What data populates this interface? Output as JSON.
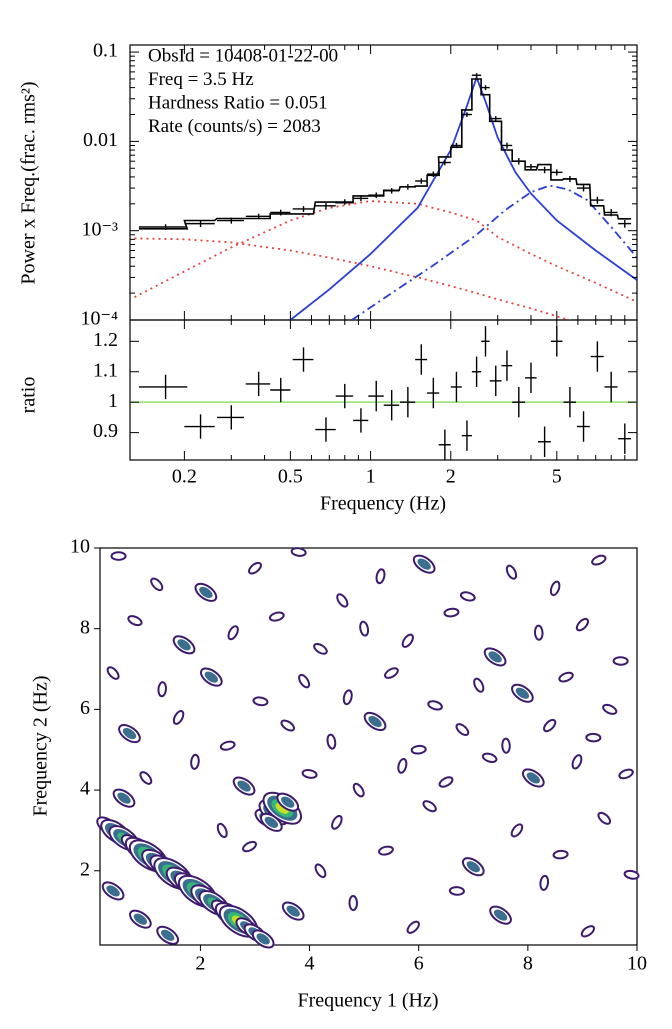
{
  "chart_data": [
    {
      "type": "errorbar",
      "xscale": "log",
      "yscale": "log",
      "ylabel": "Power x Freq.(frac. rms²)",
      "annotations": [
        "ObsId = 10408-01-22-00",
        "Freq = 3.5 Hz",
        "Hardness Ratio = 0.051",
        "Rate (counts/s) = 2083"
      ],
      "xlim": [
        0.125,
        10
      ],
      "ylim": [
        0.0001,
        0.12
      ],
      "yticks": [
        0.1,
        0.01,
        {
          "value": 0.001,
          "label": "10⁻³"
        },
        {
          "value": 0.0001,
          "label": "10⁻⁴"
        }
      ],
      "yminorticks": [
        0.0002,
        0.0003,
        0.0004,
        0.0005,
        0.0006,
        0.0007,
        0.0008,
        0.0009,
        0.002,
        0.003,
        0.004,
        0.005,
        0.006,
        0.007,
        0.008,
        0.009,
        0.02,
        0.03,
        0.04,
        0.05,
        0.06,
        0.07,
        0.08,
        0.09
      ],
      "x": [
        0.17,
        0.23,
        0.3,
        0.38,
        0.46,
        0.56,
        0.68,
        0.8,
        0.92,
        1.05,
        1.2,
        1.38,
        1.55,
        1.72,
        1.9,
        2.1,
        2.3,
        2.5,
        2.7,
        2.95,
        3.25,
        3.6,
        4.0,
        4.5,
        5.0,
        5.6,
        6.3,
        7.1,
        8.0,
        9.0
      ],
      "xerr": [
        0.035,
        0.03,
        0.035,
        0.04,
        0.04,
        0.05,
        0.06,
        0.06,
        0.06,
        0.07,
        0.08,
        0.09,
        0.08,
        0.09,
        0.1,
        0.1,
        0.1,
        0.1,
        0.1,
        0.15,
        0.15,
        0.2,
        0.2,
        0.25,
        0.25,
        0.3,
        0.35,
        0.4,
        0.45,
        0.5
      ],
      "values": [
        0.0011,
        0.0012,
        0.0013,
        0.00145,
        0.0016,
        0.00175,
        0.0019,
        0.0021,
        0.0023,
        0.0025,
        0.0028,
        0.0031,
        0.0036,
        0.0043,
        0.0058,
        0.009,
        0.02,
        0.055,
        0.04,
        0.018,
        0.009,
        0.006,
        0.0052,
        0.0048,
        0.0045,
        0.0038,
        0.003,
        0.0022,
        0.0016,
        0.0012
      ],
      "errors": [
        8e-05,
        0.0001,
        0.0001,
        0.0001,
        0.00012,
        0.00013,
        0.00014,
        0.00015,
        0.00016,
        0.00018,
        0.0002,
        0.00022,
        0.00025,
        0.0003,
        0.0004,
        0.0006,
        0.0012,
        0.003,
        0.0025,
        0.0012,
        0.0007,
        0.0005,
        0.0004,
        0.0004,
        0.00035,
        0.0003,
        0.00025,
        0.0002,
        0.00015,
        0.00012
      ],
      "model": [
        0.00105,
        0.0013,
        0.00137,
        0.00137,
        0.00154,
        0.00154,
        0.00209,
        0.00206,
        0.00245,
        0.00245,
        0.00283,
        0.0031,
        0.00316,
        0.00417,
        0.0067,
        0.0086,
        0.0225,
        0.05,
        0.0333,
        0.0168,
        0.008,
        0.006,
        0.0048,
        0.0055,
        0.0037,
        0.0038,
        0.0033,
        0.0019,
        0.0015,
        0.00136
      ],
      "color": "#000000",
      "components": [
        {
          "color": "#e8423a",
          "style": "dotted",
          "x": [
            0.13,
            0.2,
            0.3,
            0.5,
            0.7,
            1,
            1.5,
            2,
            2.5,
            3,
            4,
            5,
            7,
            10
          ],
          "values": [
            0.00082,
            0.0008,
            0.00074,
            0.0006,
            0.0005,
            0.0004,
            0.0003,
            0.00024,
            0.0002,
            0.00017,
            0.000135,
            0.00011,
            8e-05,
            6e-05
          ]
        },
        {
          "color": "#e8423a",
          "style": "dotted",
          "x": [
            0.13,
            0.2,
            0.3,
            0.5,
            0.7,
            1,
            1.5,
            2,
            2.5,
            3,
            4,
            5,
            7,
            10
          ],
          "values": [
            0.00018,
            0.00035,
            0.00065,
            0.0013,
            0.0018,
            0.00215,
            0.002,
            0.0016,
            0.0013,
            0.00085,
            0.00055,
            0.0004,
            0.00026,
            0.00016
          ]
        },
        {
          "color": "#2a3fd6",
          "style": "solid",
          "x": [
            0.5,
            0.7,
            1,
            1.5,
            2,
            2.3,
            2.5,
            2.7,
            3,
            3.5,
            4,
            5,
            7,
            10
          ],
          "values": [
            0.0001,
            0.00022,
            0.00055,
            0.0018,
            0.008,
            0.025,
            0.052,
            0.028,
            0.011,
            0.0045,
            0.0026,
            0.0013,
            0.0006,
            0.00028
          ]
        },
        {
          "color": "#2a3fd6",
          "style": "dashdot",
          "x": [
            0.85,
            1.2,
            1.7,
            2.5,
            3.2,
            4,
            4.7,
            5.5,
            6.5,
            8,
            10
          ],
          "values": [
            0.0001,
            0.0002,
            0.0004,
            0.0009,
            0.0017,
            0.0027,
            0.0032,
            0.0029,
            0.0022,
            0.0011,
            0.0005
          ]
        }
      ]
    },
    {
      "type": "errorbar",
      "xscale": "log",
      "xlabel": "Frequency (Hz)",
      "ylabel": "ratio",
      "xlim": [
        0.125,
        10
      ],
      "ylim": [
        0.81,
        1.27
      ],
      "xticks": [
        0.2,
        0.5,
        1,
        2,
        5
      ],
      "xminorticks": [
        0.3,
        0.4,
        0.6,
        0.7,
        0.8,
        0.9,
        3,
        4,
        6,
        7,
        8,
        9
      ],
      "yticks": [
        0.9,
        1,
        1.1,
        1.2
      ],
      "reference_line": {
        "value": 1,
        "color": "#8fe06a"
      },
      "x": [
        0.17,
        0.23,
        0.3,
        0.38,
        0.46,
        0.56,
        0.68,
        0.8,
        0.92,
        1.05,
        1.2,
        1.38,
        1.55,
        1.72,
        1.9,
        2.1,
        2.3,
        2.5,
        2.7,
        2.95,
        3.25,
        3.6,
        4.0,
        4.5,
        5.0,
        5.6,
        6.3,
        7.1,
        8.0,
        9.0
      ],
      "xerr": [
        0.035,
        0.03,
        0.035,
        0.04,
        0.04,
        0.05,
        0.06,
        0.06,
        0.06,
        0.07,
        0.08,
        0.09,
        0.08,
        0.09,
        0.1,
        0.1,
        0.1,
        0.1,
        0.1,
        0.15,
        0.15,
        0.2,
        0.2,
        0.25,
        0.25,
        0.3,
        0.35,
        0.4,
        0.45,
        0.5
      ],
      "values": [
        1.05,
        0.92,
        0.95,
        1.06,
        1.04,
        1.14,
        0.91,
        1.02,
        0.94,
        1.02,
        0.99,
        1.0,
        1.14,
        1.03,
        0.86,
        1.05,
        0.89,
        1.1,
        1.2,
        1.07,
        1.12,
        1.0,
        1.08,
        0.87,
        1.2,
        1.0,
        0.92,
        1.15,
        1.05,
        0.88
      ],
      "errors": [
        0.04,
        0.04,
        0.04,
        0.04,
        0.04,
        0.04,
        0.04,
        0.04,
        0.04,
        0.05,
        0.05,
        0.05,
        0.05,
        0.05,
        0.05,
        0.05,
        0.05,
        0.05,
        0.05,
        0.05,
        0.05,
        0.05,
        0.05,
        0.05,
        0.05,
        0.05,
        0.05,
        0.05,
        0.05,
        0.05
      ],
      "color": "#000000"
    },
    {
      "type": "contour",
      "xlabel": "Frequency 1 (Hz)",
      "ylabel": "Frequency 2 (Hz)",
      "xlim": [
        0.16,
        10
      ],
      "ylim": [
        0.16,
        10
      ],
      "xticks": [
        2,
        4,
        6,
        8,
        10
      ],
      "yticks": [
        2,
        4,
        6,
        8,
        10
      ],
      "level_colors": [
        "#3e1a6e",
        "#3b6e8f",
        "#35b779",
        "#c8e020"
      ],
      "x": [
        0.5,
        1.2,
        2.1,
        3.0,
        3.8,
        4.6,
        5.3,
        6.1,
        6.9,
        7.7,
        8.5,
        9.3,
        0.8,
        1.7,
        2.6,
        3.4,
        4.2,
        5.0,
        5.8,
        6.6,
        7.4,
        8.2,
        9.0,
        9.7,
        0.4,
        1.3,
        2.2,
        3.1,
        3.9,
        4.7,
        5.5,
        6.3,
        7.1,
        7.9,
        8.7,
        9.5,
        0.7,
        1.6,
        2.5,
        3.6,
        4.4,
        5.2,
        6.0,
        6.8,
        7.6,
        8.4,
        9.2,
        1.0,
        1.9,
        2.8,
        4.0,
        4.9,
        5.7,
        6.5,
        7.3,
        8.1,
        8.9,
        9.8,
        0.9,
        0.4,
        4.5,
        5.4,
        6.2,
        7.0,
        7.8,
        8.6,
        9.4,
        4.8,
        5.9,
        6.7,
        7.5,
        8.3,
        9.1,
        9.9,
        4.2,
        3.7,
        2.9,
        1.4,
        2.4,
        0.6,
        0.3,
        0.45,
        0.6,
        0.75,
        0.9,
        1.05,
        1.2,
        1.35,
        1.5,
        1.65,
        1.8,
        1.95,
        2.1,
        2.25,
        2.4,
        2.55,
        2.7,
        2.85,
        3.0,
        3.15,
        3.2,
        3.35,
        3.5,
        3.6,
        3.3
      ],
      "y": [
        9.8,
        9.1,
        8.9,
        9.5,
        9.9,
        8.7,
        9.3,
        9.6,
        8.8,
        9.4,
        9.0,
        9.7,
        8.2,
        7.6,
        7.9,
        8.3,
        7.5,
        8.0,
        7.7,
        8.4,
        7.3,
        7.9,
        8.1,
        7.2,
        6.9,
        6.5,
        6.8,
        6.2,
        6.7,
        6.3,
        6.9,
        6.1,
        6.6,
        6.4,
        6.8,
        6.0,
        5.4,
        5.8,
        5.1,
        5.6,
        5.2,
        5.7,
        5.0,
        5.5,
        5.1,
        5.6,
        5.3,
        4.3,
        4.7,
        4.1,
        4.4,
        4.0,
        4.6,
        4.2,
        4.8,
        4.3,
        4.7,
        4.4,
        0.8,
        1.5,
        3.2,
        2.5,
        3.6,
        2.1,
        3.0,
        2.4,
        3.3,
        1.2,
        0.6,
        1.5,
        0.9,
        1.7,
        0.5,
        1.9,
        2.0,
        1.0,
        2.6,
        0.4,
        3.0,
        3.8,
        3.11,
        2.96,
        2.81,
        2.67,
        2.52,
        2.37,
        2.22,
        2.08,
        1.93,
        1.78,
        1.64,
        1.49,
        1.34,
        1.2,
        1.05,
        0.9,
        0.75,
        0.61,
        0.46,
        0.31,
        3.3,
        3.45,
        3.55,
        3.7,
        3.2
      ],
      "levels": [
        1,
        1,
        2,
        1,
        1,
        1,
        1,
        2,
        1,
        1,
        1,
        1,
        1,
        2,
        1,
        1,
        1,
        1,
        1,
        1,
        2,
        1,
        1,
        1,
        1,
        1,
        2,
        1,
        1,
        1,
        1,
        1,
        1,
        2,
        1,
        1,
        2,
        1,
        1,
        1,
        1,
        2,
        1,
        1,
        1,
        1,
        1,
        1,
        1,
        2,
        1,
        1,
        1,
        1,
        1,
        2,
        1,
        1,
        2,
        2,
        1,
        1,
        1,
        2,
        1,
        1,
        1,
        1,
        1,
        1,
        2,
        1,
        1,
        1,
        1,
        2,
        1,
        2,
        1,
        2,
        2,
        3,
        3,
        2,
        3,
        4,
        3,
        3,
        4,
        3,
        3,
        4,
        3,
        3,
        2,
        3,
        4,
        2,
        2,
        2,
        2,
        3,
        4,
        2,
        2
      ]
    }
  ]
}
